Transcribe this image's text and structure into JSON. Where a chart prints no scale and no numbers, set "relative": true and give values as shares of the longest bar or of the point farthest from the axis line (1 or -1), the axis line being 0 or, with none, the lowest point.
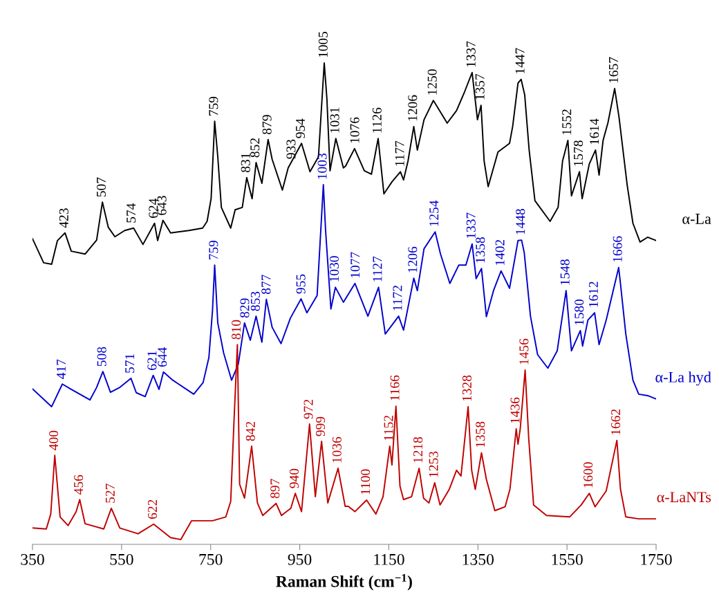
{
  "chart_data": {
    "type": "line",
    "relative": true,
    "xlabel": "Raman Shift (cm$^{−1}$)",
    "xlim": [
      350,
      1750
    ],
    "xticks": [
      350,
      550,
      750,
      950,
      1150,
      1350,
      1550,
      1750
    ],
    "line_style": "solid",
    "series": [
      {
        "name": "α-La",
        "color": "#000000",
        "x": [
          350,
          375,
          393,
          406,
          423,
          437,
          468,
          494,
          507,
          520,
          535,
          557,
          577,
          598,
          624,
          631,
          643,
          660,
          701,
          732,
          742,
          751,
          759,
          766,
          774,
          795,
          805,
          821,
          831,
          843,
          852,
          865,
          879,
          888,
          911,
          924,
          954,
          973,
          992,
          1005,
          1011,
          1018,
          1031,
          1048,
          1053,
          1073,
          1095,
          1111,
          1126,
          1139,
          1157,
          1176,
          1183,
          1193,
          1206,
          1214,
          1229,
          1250,
          1281,
          1302,
          1320,
          1337,
          1349,
          1357,
          1364,
          1373,
          1395,
          1421,
          1428,
          1440,
          1447,
          1455,
          1465,
          1478,
          1512,
          1530,
          1540,
          1552,
          1560,
          1578,
          1584,
          1600,
          1614,
          1622,
          1631,
          1642,
          1657,
          1667,
          1685,
          1698,
          1714,
          1731,
          1750
        ],
        "values": [
          0.635,
          0.585,
          0.582,
          0.631,
          0.647,
          0.609,
          0.603,
          0.632,
          0.711,
          0.659,
          0.639,
          0.652,
          0.657,
          0.623,
          0.667,
          0.631,
          0.673,
          0.647,
          0.652,
          0.657,
          0.671,
          0.718,
          0.879,
          0.805,
          0.7,
          0.657,
          0.695,
          0.7,
          0.762,
          0.718,
          0.793,
          0.75,
          0.841,
          0.8,
          0.736,
          0.782,
          0.833,
          0.774,
          0.805,
          1.0,
          0.925,
          0.776,
          0.843,
          0.782,
          0.786,
          0.822,
          0.776,
          0.769,
          0.843,
          0.728,
          0.753,
          0.774,
          0.757,
          0.796,
          0.868,
          0.819,
          0.882,
          0.922,
          0.875,
          0.901,
          0.94,
          0.98,
          0.882,
          0.912,
          0.796,
          0.743,
          0.815,
          0.833,
          0.868,
          0.958,
          0.966,
          0.934,
          0.819,
          0.714,
          0.671,
          0.7,
          0.796,
          0.839,
          0.724,
          0.774,
          0.718,
          0.79,
          0.819,
          0.767,
          0.839,
          0.876,
          0.947,
          0.886,
          0.747,
          0.667,
          0.628,
          0.638,
          0.631
        ]
      },
      {
        "name": "α-La hyd",
        "color": "#0000cc",
        "x": [
          350,
          393,
          417,
          437,
          479,
          494,
          508,
          525,
          546,
          571,
          583,
          603,
          621,
          634,
          644,
          665,
          712,
          733,
          746,
          754,
          759,
          766,
          779,
          797,
          812,
          826,
          839,
          852,
          865,
          875,
          888,
          908,
          929,
          953,
          966,
          989,
          1003,
          1008,
          1020,
          1030,
          1048,
          1074,
          1103,
          1127,
          1142,
          1172,
          1183,
          1206,
          1214,
          1229,
          1254,
          1266,
          1287,
          1307,
          1323,
          1337,
          1346,
          1358,
          1369,
          1385,
          1402,
          1421,
          1440,
          1448,
          1454,
          1468,
          1484,
          1507,
          1528,
          1548,
          1560,
          1580,
          1585,
          1597,
          1612,
          1622,
          1638,
          1666,
          1670,
          1682,
          1698,
          1711,
          1731,
          1750
        ],
        "values": [
          0.323,
          0.286,
          0.333,
          0.322,
          0.3,
          0.326,
          0.359,
          0.316,
          0.326,
          0.345,
          0.315,
          0.307,
          0.351,
          0.322,
          0.358,
          0.341,
          0.312,
          0.336,
          0.388,
          0.484,
          0.58,
          0.46,
          0.398,
          0.341,
          0.374,
          0.46,
          0.424,
          0.474,
          0.42,
          0.509,
          0.451,
          0.417,
          0.47,
          0.51,
          0.481,
          0.517,
          0.747,
          0.652,
          0.489,
          0.534,
          0.503,
          0.542,
          0.474,
          0.534,
          0.437,
          0.474,
          0.445,
          0.553,
          0.527,
          0.614,
          0.649,
          0.603,
          0.542,
          0.58,
          0.58,
          0.624,
          0.552,
          0.573,
          0.473,
          0.527,
          0.568,
          0.532,
          0.631,
          0.632,
          0.606,
          0.474,
          0.394,
          0.366,
          0.402,
          0.527,
          0.402,
          0.444,
          0.412,
          0.466,
          0.481,
          0.415,
          0.466,
          0.575,
          0.542,
          0.437,
          0.341,
          0.312,
          0.309,
          0.302
        ]
      },
      {
        "name": "α-LaNTs",
        "color": "#c00000",
        "x": [
          350,
          381,
          391,
          400,
          412,
          430,
          448,
          456,
          468,
          510,
          527,
          546,
          587,
          622,
          660,
          683,
          707,
          754,
          784,
          795,
          803,
          810,
          815,
          826,
          842,
          855,
          867,
          897,
          909,
          930,
          940,
          954,
          972,
          985,
          999,
          1013,
          1036,
          1052,
          1059,
          1074,
          1100,
          1121,
          1137,
          1152,
          1157,
          1166,
          1175,
          1183,
          1201,
          1218,
          1228,
          1240,
          1253,
          1265,
          1286,
          1302,
          1312,
          1328,
          1336,
          1344,
          1358,
          1369,
          1388,
          1411,
          1422,
          1436,
          1440,
          1445,
          1456,
          1464,
          1475,
          1504,
          1556,
          1582,
          1600,
          1613,
          1638,
          1662,
          1670,
          1682,
          1711,
          1750
        ],
        "values": [
          0.034,
          0.032,
          0.063,
          0.185,
          0.057,
          0.039,
          0.068,
          0.093,
          0.043,
          0.032,
          0.075,
          0.034,
          0.022,
          0.042,
          0.014,
          0.01,
          0.049,
          0.049,
          0.057,
          0.089,
          0.269,
          0.415,
          0.125,
          0.096,
          0.204,
          0.086,
          0.06,
          0.085,
          0.06,
          0.075,
          0.106,
          0.068,
          0.25,
          0.099,
          0.214,
          0.086,
          0.158,
          0.079,
          0.079,
          0.068,
          0.092,
          0.063,
          0.099,
          0.204,
          0.165,
          0.287,
          0.121,
          0.093,
          0.099,
          0.158,
          0.096,
          0.086,
          0.128,
          0.082,
          0.115,
          0.154,
          0.142,
          0.286,
          0.154,
          0.114,
          0.19,
          0.135,
          0.07,
          0.078,
          0.115,
          0.24,
          0.208,
          0.24,
          0.362,
          0.221,
          0.082,
          0.06,
          0.057,
          0.082,
          0.106,
          0.078,
          0.111,
          0.216,
          0.115,
          0.057,
          0.053,
          0.053
        ]
      }
    ],
    "annotations": [
      {
        "text": "423",
        "x": 423,
        "y": 0.647
      },
      {
        "text": "507",
        "x": 507,
        "y": 0.711
      },
      {
        "text": "574",
        "x": 574,
        "y": 0.657
      },
      {
        "text": "624",
        "x": 624,
        "y": 0.667
      },
      {
        "text": "643",
        "x": 643,
        "y": 0.673
      },
      {
        "text": "759",
        "x": 759,
        "y": 0.879
      },
      {
        "text": "831",
        "x": 831,
        "y": 0.762
      },
      {
        "text": "852",
        "x": 852,
        "y": 0.793
      },
      {
        "text": "879",
        "x": 879,
        "y": 0.841
      },
      {
        "text": "933",
        "x": 933,
        "y": 0.79
      },
      {
        "text": "954",
        "x": 954,
        "y": 0.833
      },
      {
        "text": "1005",
        "x": 1005,
        "y": 1.0
      },
      {
        "text": "1031",
        "x": 1031,
        "y": 0.843
      },
      {
        "text": "1076",
        "x": 1076,
        "y": 0.822
      },
      {
        "text": "1126",
        "x": 1126,
        "y": 0.843
      },
      {
        "text": "1177",
        "x": 1177,
        "y": 0.774
      },
      {
        "text": "1206",
        "x": 1206,
        "y": 0.868
      },
      {
        "text": "1250",
        "x": 1250,
        "y": 0.922
      },
      {
        "text": "1337",
        "x": 1337,
        "y": 0.98
      },
      {
        "text": "1357",
        "x": 1357,
        "y": 0.912
      },
      {
        "text": "1447",
        "x": 1447,
        "y": 0.966
      },
      {
        "text": "1552",
        "x": 1552,
        "y": 0.839
      },
      {
        "text": "1578",
        "x": 1578,
        "y": 0.774
      },
      {
        "text": "1614",
        "x": 1614,
        "y": 0.819
      },
      {
        "text": "1657",
        "x": 1657,
        "y": 0.947
      },
      {
        "text": "417",
        "x": 417,
        "y": 0.333
      },
      {
        "text": "508",
        "x": 508,
        "y": 0.359
      },
      {
        "text": "571",
        "x": 571,
        "y": 0.345
      },
      {
        "text": "621",
        "x": 621,
        "y": 0.351
      },
      {
        "text": "644",
        "x": 644,
        "y": 0.358
      },
      {
        "text": "759",
        "x": 759,
        "y": 0.58
      },
      {
        "text": "829",
        "x": 829,
        "y": 0.46
      },
      {
        "text": "853",
        "x": 853,
        "y": 0.474
      },
      {
        "text": "877",
        "x": 877,
        "y": 0.509
      },
      {
        "text": "955",
        "x": 955,
        "y": 0.51
      },
      {
        "text": "1003",
        "x": 1003,
        "y": 0.747
      },
      {
        "text": "1030",
        "x": 1030,
        "y": 0.534
      },
      {
        "text": "1077",
        "x": 1077,
        "y": 0.542
      },
      {
        "text": "1127",
        "x": 1127,
        "y": 0.534
      },
      {
        "text": "1172",
        "x": 1172,
        "y": 0.474
      },
      {
        "text": "1206",
        "x": 1206,
        "y": 0.553
      },
      {
        "text": "1254",
        "x": 1254,
        "y": 0.649
      },
      {
        "text": "1337",
        "x": 1337,
        "y": 0.624
      },
      {
        "text": "1358",
        "x": 1358,
        "y": 0.573
      },
      {
        "text": "1402",
        "x": 1402,
        "y": 0.568
      },
      {
        "text": "1448",
        "x": 1448,
        "y": 0.632
      },
      {
        "text": "1548",
        "x": 1548,
        "y": 0.527
      },
      {
        "text": "1580",
        "x": 1580,
        "y": 0.444
      },
      {
        "text": "1612",
        "x": 1612,
        "y": 0.481
      },
      {
        "text": "1666",
        "x": 1666,
        "y": 0.575
      },
      {
        "text": "400",
        "x": 400,
        "y": 0.185
      },
      {
        "text": "456",
        "x": 456,
        "y": 0.093
      },
      {
        "text": "527",
        "x": 527,
        "y": 0.075
      },
      {
        "text": "622",
        "x": 622,
        "y": 0.042
      },
      {
        "text": "810",
        "x": 810,
        "y": 0.415
      },
      {
        "text": "842",
        "x": 842,
        "y": 0.204
      },
      {
        "text": "897",
        "x": 897,
        "y": 0.085
      },
      {
        "text": "940",
        "x": 940,
        "y": 0.106
      },
      {
        "text": "972",
        "x": 972,
        "y": 0.25
      },
      {
        "text": "999",
        "x": 999,
        "y": 0.214
      },
      {
        "text": "1036",
        "x": 1036,
        "y": 0.158
      },
      {
        "text": "1100",
        "x": 1100,
        "y": 0.092
      },
      {
        "text": "1152",
        "x": 1152,
        "y": 0.204
      },
      {
        "text": "1166",
        "x": 1166,
        "y": 0.287
      },
      {
        "text": "1218",
        "x": 1218,
        "y": 0.158
      },
      {
        "text": "1253",
        "x": 1253,
        "y": 0.128
      },
      {
        "text": "1328",
        "x": 1328,
        "y": 0.286
      },
      {
        "text": "1358",
        "x": 1358,
        "y": 0.19
      },
      {
        "text": "1436",
        "x": 1436,
        "y": 0.24
      },
      {
        "text": "1456",
        "x": 1456,
        "y": 0.362
      },
      {
        "text": "1600",
        "x": 1600,
        "y": 0.106
      },
      {
        "text": "1662",
        "x": 1662,
        "y": 0.216
      }
    ]
  }
}
